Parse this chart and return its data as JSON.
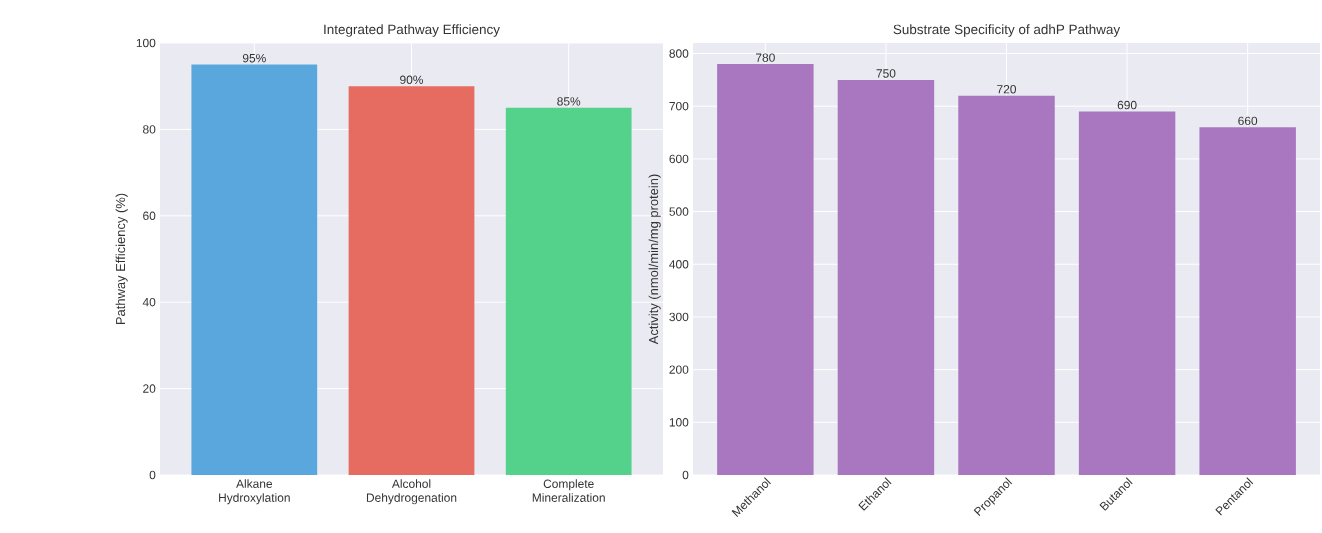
{
  "chart_data": [
    {
      "type": "bar",
      "title": "Integrated Pathway Efficiency",
      "ylabel": "Pathway Efficiency (%)",
      "categories": [
        "Alkane Hydroxylation",
        "Alcohol Dehydrogenation",
        "Complete Mineralization"
      ],
      "values": [
        95,
        90,
        85
      ],
      "colors": [
        "#59a7dd",
        "#e66b60",
        "#54d18a"
      ],
      "value_labels": [
        "95%",
        "90%",
        "85%"
      ],
      "ylim": [
        0,
        100
      ],
      "yticks": [
        0,
        20,
        40,
        60,
        80,
        100
      ],
      "grid": true
    },
    {
      "type": "bar",
      "title": "Substrate Specificity of adhP Pathway",
      "ylabel": "Activity (nmol/min/mg protein)",
      "categories": [
        "Methanol",
        "Ethanol",
        "Propanol",
        "Butanol",
        "Pentanol"
      ],
      "values": [
        780,
        750,
        720,
        690,
        660
      ],
      "color": "#a877c0",
      "data_labels": true,
      "ylim": [
        0,
        820
      ],
      "yticks": [
        0,
        100,
        200,
        300,
        400,
        500,
        600,
        700,
        800
      ],
      "grid": true
    }
  ]
}
